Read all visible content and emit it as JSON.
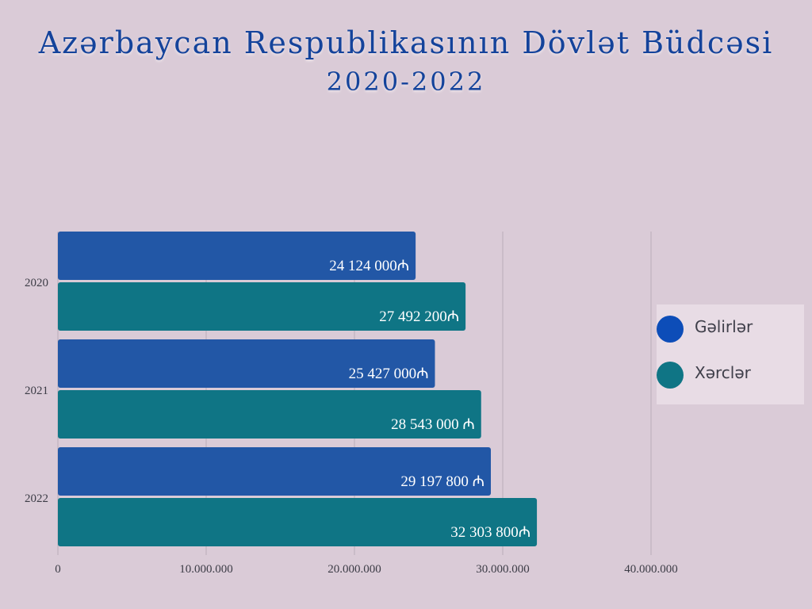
{
  "header": {
    "title": "Azərbaycan Respublikasının Dövlət Büdcəsi",
    "subtitle": "2020-2022"
  },
  "colors": {
    "background": "#dacbd7",
    "title": "#14439b",
    "revenue": "#2257a6",
    "expense": "#0f7585",
    "grid": "#b9adb8",
    "axis_text": "#3c3c46"
  },
  "legend": {
    "items": [
      {
        "label": "Gəlirlər",
        "color": "#0d4db8"
      },
      {
        "label": "Xərclər",
        "color": "#0f7585"
      }
    ]
  },
  "chart_data": {
    "type": "bar",
    "orientation": "horizontal",
    "categories": [
      "2020",
      "2021",
      "2022"
    ],
    "series": [
      {
        "name": "Gəlirlər",
        "values": [
          24124000,
          25427000,
          29197800
        ],
        "labels": [
          "24 124 000₼",
          "25 427 000₼",
          "29 197 800 ₼"
        ]
      },
      {
        "name": "Xərclər",
        "values": [
          27492200,
          28543000,
          32303800
        ],
        "labels": [
          "27 492 200₼",
          "28 543 000 ₼",
          "32 303 800₼"
        ]
      }
    ],
    "xlim": [
      0,
      40000000
    ],
    "xticks": [
      0,
      10000000,
      20000000,
      30000000,
      40000000
    ],
    "xtick_labels": [
      "0",
      "10.000.000",
      "20.000.000",
      "30.000.000",
      "40.000.000"
    ],
    "grid": true,
    "legend_position": "right"
  }
}
